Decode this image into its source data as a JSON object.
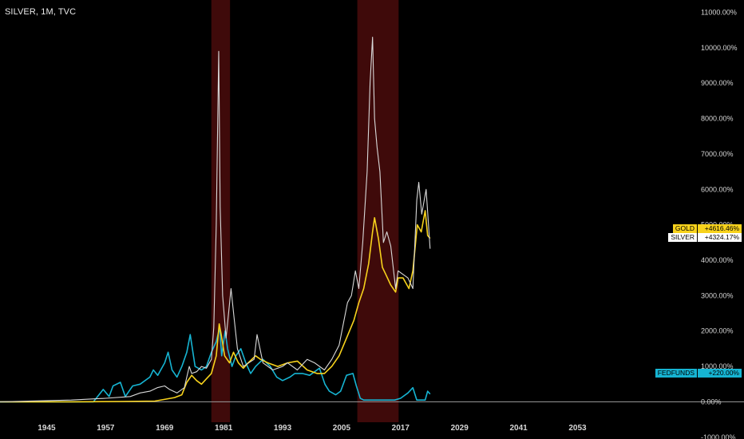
{
  "header": {
    "title": "SILVER, 1M, TVC"
  },
  "colors": {
    "background": "#000000",
    "gold": "#f7d21c",
    "silver": "#d9d9d9",
    "fedfunds": "#16b4d2",
    "highlight": "#4a0c0c",
    "zero_line": "#9c9c9c"
  },
  "legend_tags": [
    {
      "name": "GOLD",
      "value": "+4616.46%",
      "bg": "#f7d21c",
      "fg": "#000000"
    },
    {
      "name": "SILVER",
      "value": "+4324.17%",
      "bg": "#ffffff",
      "fg": "#000000"
    },
    {
      "name": "FEDFUNDS",
      "value": "+220.00%",
      "bg": "#16b4d2",
      "fg": "#000000"
    }
  ],
  "chart_data": {
    "type": "line",
    "ylim": [
      -1050,
      11350
    ],
    "xlim": [
      1935.5,
      2075.5
    ],
    "y_ticks": [
      -1000,
      0,
      1000,
      2000,
      3000,
      4000,
      5000,
      6000,
      7000,
      8000,
      9000,
      10000,
      11000
    ],
    "y_tick_labels": [
      "-1000.00%",
      "0.00%",
      "1000.00%",
      "2000.00%",
      "3000.00%",
      "4000.00%",
      "5000.00%",
      "6000.00%",
      "7000.00%",
      "8000.00%",
      "9000.00%",
      "10000.00%",
      "11000.00%"
    ],
    "x_ticks": [
      1945,
      1957,
      1969,
      1981,
      1993,
      2005,
      2017,
      2029,
      2041,
      2053
    ],
    "x_tick_labels": [
      "1945",
      "1957",
      "1969",
      "1981",
      "1993",
      "2005",
      "2017",
      "2029",
      "2041",
      "2053"
    ],
    "highlight_ranges": [
      [
        1978.5,
        1982.3
      ],
      [
        2008.2,
        2016.6
      ]
    ],
    "series": [
      {
        "name": "GOLD",
        "x": [
          1935.5,
          1950,
          1960,
          1967,
          1971,
          1972.5,
          1973.5,
          1974.5,
          1975.5,
          1976.5,
          1977.5,
          1978.5,
          1979.5,
          1980.1,
          1980.5,
          1981.2,
          1982.2,
          1983,
          1984,
          1985,
          1986,
          1987.5,
          1988.5,
          1990,
          1992,
          1994,
          1996,
          1998,
          2000,
          2001.5,
          2003,
          2004.5,
          2006,
          2007.5,
          2008.5,
          2009.5,
          2010.5,
          2011.3,
          2011.7,
          2012.5,
          2013.3,
          2014,
          2015,
          2016,
          2016.5,
          2017.5,
          2018.7,
          2019.5,
          2020.4,
          2021.2,
          2022,
          2022.5,
          2023
        ],
        "y": [
          0,
          0,
          10,
          20,
          120,
          200,
          550,
          750,
          600,
          500,
          650,
          800,
          1300,
          2200,
          1900,
          1300,
          1100,
          1400,
          1100,
          950,
          1100,
          1300,
          1200,
          1100,
          1000,
          1100,
          1150,
          900,
          800,
          800,
          1000,
          1300,
          1800,
          2300,
          2800,
          3200,
          3900,
          4800,
          5200,
          4600,
          3800,
          3600,
          3300,
          3100,
          3500,
          3500,
          3200,
          3700,
          5000,
          4800,
          5400,
          4700,
          4616
        ]
      },
      {
        "name": "SILVER",
        "x": [
          1935.5,
          1950,
          1957,
          1962,
          1964,
          1966,
          1967.5,
          1969,
          1970,
          1971.5,
          1973,
          1974,
          1974.5,
          1975.5,
          1976.5,
          1977.5,
          1978.5,
          1979,
          1979.5,
          1980,
          1980.3,
          1980.8,
          1981.5,
          1982.5,
          1983.1,
          1983.8,
          1985,
          1987.2,
          1987.8,
          1989,
          1991,
          1993,
          1994,
          1996,
          1998,
          1999.5,
          2001.5,
          2003,
          2004.5,
          2006.2,
          2007,
          2007.8,
          2008.5,
          2009.3,
          2010.2,
          2010.8,
          2011.3,
          2011.7,
          2012.2,
          2012.8,
          2013.5,
          2014.2,
          2015,
          2016,
          2016.5,
          2017.5,
          2018.5,
          2019.5,
          2020.3,
          2020.7,
          2021.3,
          2022.2,
          2023
        ],
        "y": [
          0,
          50,
          100,
          150,
          250,
          300,
          400,
          450,
          350,
          250,
          400,
          1000,
          800,
          850,
          1000,
          950,
          1200,
          2100,
          5000,
          9900,
          5500,
          3000,
          1800,
          3200,
          2400,
          1500,
          1000,
          1200,
          1900,
          1100,
          900,
          1000,
          1100,
          900,
          1200,
          1100,
          900,
          1200,
          1600,
          2800,
          3000,
          3700,
          3200,
          4500,
          6500,
          9000,
          10300,
          8000,
          7200,
          6500,
          4500,
          4800,
          4400,
          3200,
          3700,
          3600,
          3500,
          3200,
          5700,
          6200,
          5300,
          6000,
          4324
        ]
      },
      {
        "name": "FEDFUNDS",
        "x": [
          1935.5,
          1954.5,
          1956.5,
          1957.7,
          1958.5,
          1960,
          1961,
          1962.5,
          1964,
          1966,
          1966.7,
          1967.6,
          1969,
          1969.7,
          1970.5,
          1971.5,
          1972.5,
          1973.5,
          1974.2,
          1975.2,
          1976.5,
          1977.5,
          1978.5,
          1979.5,
          1980.2,
          1980.6,
          1981.3,
          1981.8,
          1982.7,
          1983.5,
          1984.5,
          1985.5,
          1986.5,
          1987.5,
          1989,
          1990.5,
          1991.8,
          1993,
          1994.5,
          1995.5,
          1997,
          1998.5,
          1999.5,
          2000.5,
          2001.6,
          2002.5,
          2003.8,
          2004.8,
          2006,
          2007.3,
          2008,
          2008.8,
          2009.5,
          2015.8,
          2017,
          2018.5,
          2019.5,
          2020.3,
          2022,
          2022.5,
          2023
        ],
        "y": [
          0,
          0,
          350,
          150,
          450,
          550,
          150,
          450,
          500,
          700,
          900,
          750,
          1100,
          1400,
          900,
          700,
          1000,
          1400,
          1900,
          1000,
          900,
          1000,
          1400,
          1700,
          2100,
          1300,
          2000,
          1500,
          1000,
          1300,
          1500,
          1100,
          800,
          1000,
          1200,
          1000,
          700,
          600,
          700,
          800,
          800,
          750,
          850,
          950,
          500,
          300,
          200,
          300,
          750,
          800,
          450,
          100,
          50,
          50,
          100,
          250,
          400,
          50,
          50,
          300,
          220
        ]
      }
    ]
  }
}
